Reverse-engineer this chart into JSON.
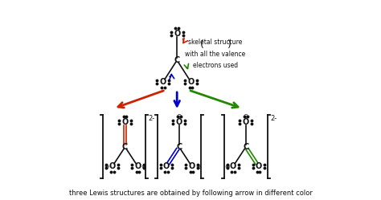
{
  "bg_color": "#ffffff",
  "text_color": "#000000",
  "title_text": "three Lewis structures are obtained by following arrow in different color",
  "annotation_line1": "skeletal structure",
  "annotation_line2": "with all the valence",
  "annotation_line3": "electrons used",
  "red_color": "#cc2200",
  "blue_color": "#0000cc",
  "green_color": "#228800",
  "black_color": "#111111",
  "fig_w": 4.74,
  "fig_h": 2.49,
  "dpi": 100
}
